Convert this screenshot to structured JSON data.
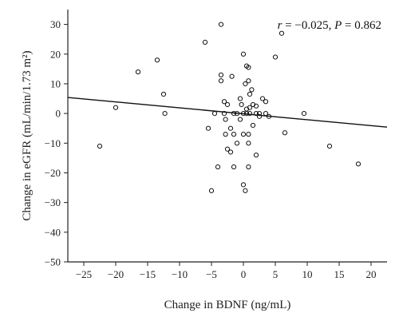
{
  "chart_data": {
    "type": "scatter",
    "title": "",
    "xlabel": "Change in BDNF (ng/mL)",
    "ylabel": "Change in eGFR (mL/min/1.73 m²)",
    "xlim": [
      -27.5,
      22.5
    ],
    "ylim": [
      -50,
      35
    ],
    "xticks": [
      -25,
      -20,
      -15,
      -10,
      -5,
      0,
      5,
      10,
      15,
      20
    ],
    "yticks": [
      -50,
      -40,
      -30,
      -20,
      -10,
      0,
      10,
      20,
      30
    ],
    "annotation": {
      "r_symbol": "r",
      "r_text": " = −0.025, ",
      "p_symbol": "P",
      "p_text": " = 0.862"
    },
    "regression_line": {
      "x": [
        -27.5,
        22.5
      ],
      "y": [
        5.4,
        -4.6
      ]
    },
    "points": [
      [
        -22.5,
        -11
      ],
      [
        -20,
        2
      ],
      [
        -16.5,
        14
      ],
      [
        -13.5,
        18
      ],
      [
        -12.5,
        6.5
      ],
      [
        -12.3,
        0
      ],
      [
        -6,
        24
      ],
      [
        -5.5,
        -5
      ],
      [
        -5,
        -26
      ],
      [
        -4.5,
        0
      ],
      [
        -4,
        -18
      ],
      [
        -3.5,
        30
      ],
      [
        -3.5,
        13
      ],
      [
        -3.5,
        11
      ],
      [
        -3,
        4
      ],
      [
        -3,
        0
      ],
      [
        -2.8,
        -2
      ],
      [
        -2.8,
        -7
      ],
      [
        -2.5,
        -12
      ],
      [
        -2.5,
        3
      ],
      [
        -2,
        -5
      ],
      [
        -2,
        -13
      ],
      [
        -1.8,
        12.5
      ],
      [
        -1.5,
        0
      ],
      [
        -1.5,
        -7
      ],
      [
        -1.5,
        -18
      ],
      [
        -1,
        0
      ],
      [
        -1,
        -10
      ],
      [
        -0.5,
        -2
      ],
      [
        -0.5,
        5
      ],
      [
        -0.3,
        3
      ],
      [
        0,
        20
      ],
      [
        0,
        0
      ],
      [
        0,
        -7
      ],
      [
        0,
        -24
      ],
      [
        0.3,
        10
      ],
      [
        0.3,
        -26
      ],
      [
        0.5,
        0
      ],
      [
        0.5,
        1.5
      ],
      [
        0.5,
        16
      ],
      [
        0.8,
        15.5
      ],
      [
        0.8,
        11
      ],
      [
        0.8,
        -7
      ],
      [
        0.8,
        -10
      ],
      [
        0.8,
        -18
      ],
      [
        1,
        0
      ],
      [
        1,
        6.5
      ],
      [
        1,
        2
      ],
      [
        1.3,
        8
      ],
      [
        1.5,
        3
      ],
      [
        1.5,
        -4
      ],
      [
        2,
        -14
      ],
      [
        2,
        2.5
      ],
      [
        2,
        0
      ],
      [
        2.5,
        0
      ],
      [
        2.5,
        -1
      ],
      [
        3,
        5
      ],
      [
        3.5,
        4
      ],
      [
        3.5,
        0
      ],
      [
        4,
        -1
      ],
      [
        5,
        19
      ],
      [
        6,
        27
      ],
      [
        6.5,
        -6.5
      ],
      [
        9.5,
        0
      ],
      [
        13.5,
        -11
      ],
      [
        18,
        -17
      ]
    ]
  }
}
